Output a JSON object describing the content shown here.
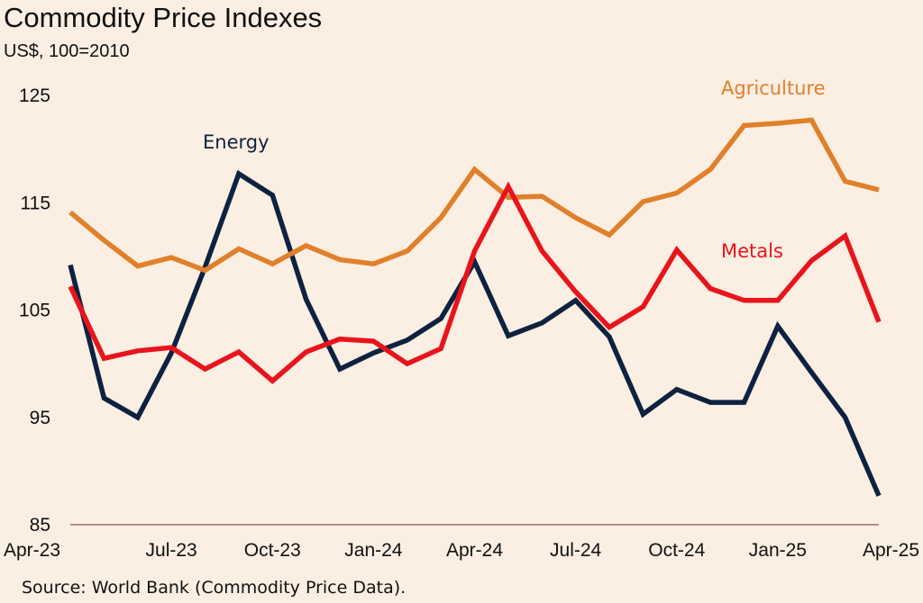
{
  "chart_data": {
    "type": "line",
    "title": "Commodity Price Indexes",
    "subtitle": "US$, 100=2010",
    "source": "Source: World Bank (Commodity Price Data).",
    "ylim": [
      85,
      127
    ],
    "yticks": [
      125,
      115,
      105,
      95,
      85
    ],
    "xtick_labels": [
      "Apr-23",
      "Jul-23",
      "Oct-23",
      "Jan-24",
      "Apr-24",
      "Jul-24",
      "Oct-24",
      "Jan-25",
      "Apr-25"
    ],
    "x": [
      "Apr-23",
      "May-23",
      "Jun-23",
      "Jul-23",
      "Aug-23",
      "Sep-23",
      "Oct-23",
      "Nov-23",
      "Dec-23",
      "Jan-24",
      "Feb-24",
      "Mar-24",
      "Apr-24",
      "May-24",
      "Jun-24",
      "Jul-24",
      "Aug-24",
      "Sep-24",
      "Oct-24",
      "Nov-24",
      "Dec-24",
      "Jan-25",
      "Feb-25",
      "Mar-25",
      "Apr-25"
    ],
    "series": [
      {
        "name": "Energy",
        "color": "#0d2240",
        "values": [
          109.2,
          96.8,
          95.0,
          101.0,
          109.0,
          117.7,
          115.7,
          106.0,
          99.5,
          101.0,
          102.2,
          104.2,
          109.5,
          102.6,
          103.8,
          105.9,
          102.5,
          95.3,
          97.6,
          96.4,
          96.4,
          103.5,
          99.2,
          95.0,
          87.7
        ]
      },
      {
        "name": "Agriculture",
        "color": "#e0802a",
        "values": [
          114.1,
          111.5,
          109.1,
          109.9,
          108.7,
          110.7,
          109.3,
          111.0,
          109.7,
          109.3,
          110.5,
          113.6,
          118.1,
          115.5,
          115.6,
          113.6,
          112.0,
          115.1,
          115.9,
          118.1,
          122.2,
          122.4,
          122.7,
          117.0,
          116.2
        ]
      },
      {
        "name": "Metals",
        "color": "#e8141c",
        "values": [
          107.2,
          100.5,
          101.2,
          101.5,
          99.5,
          101.1,
          98.4,
          101.1,
          102.3,
          102.1,
          100.0,
          101.4,
          110.5,
          116.5,
          110.5,
          106.7,
          103.4,
          105.3,
          110.6,
          107.0,
          105.9,
          105.9,
          109.6,
          111.9,
          103.9
        ]
      }
    ]
  }
}
